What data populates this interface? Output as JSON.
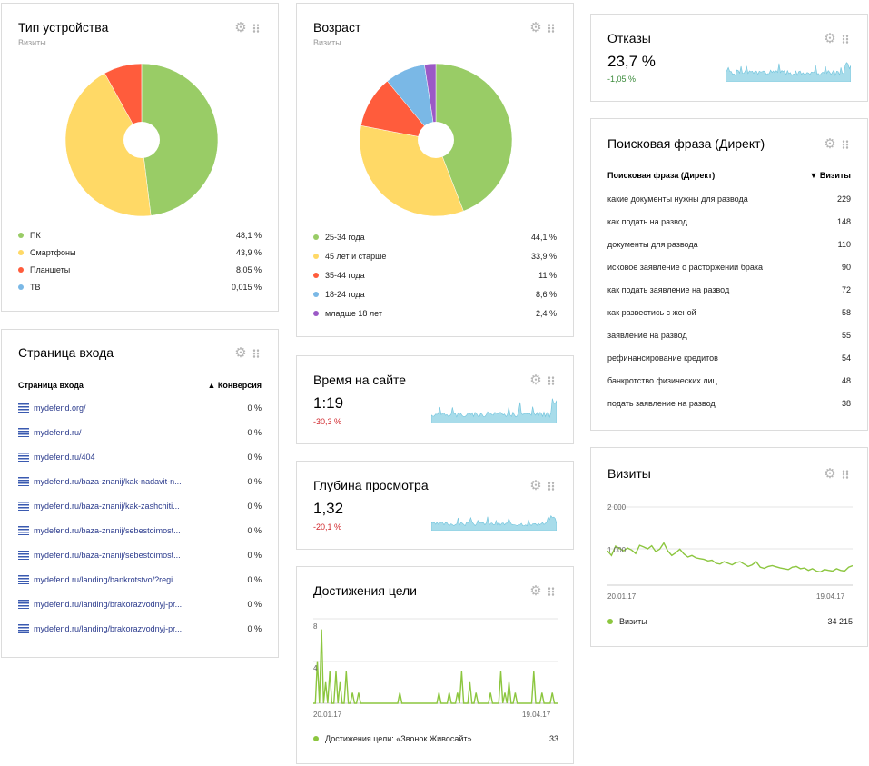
{
  "device": {
    "title": "Тип устройства",
    "subtitle": "Визиты",
    "slice_colors": [
      "#99cc66",
      "#ffd966",
      "#ff5c3c",
      "#7ab8e6"
    ],
    "items": [
      {
        "label": "ПК",
        "value": "48,1 %",
        "share": 48.1,
        "color": "#99cc66"
      },
      {
        "label": "Смартфоны",
        "value": "43,9 %",
        "share": 43.9,
        "color": "#ffd966"
      },
      {
        "label": "Планшеты",
        "value": "8,05 %",
        "share": 8.05,
        "color": "#ff5c3c"
      },
      {
        "label": "ТВ",
        "value": "0,015 %",
        "share": 0.015,
        "color": "#7ab8e6"
      }
    ]
  },
  "age": {
    "title": "Возраст",
    "subtitle": "Визиты",
    "items": [
      {
        "label": "25-34 года",
        "value": "44,1 %",
        "share": 44.1,
        "color": "#99cc66"
      },
      {
        "label": "45 лет и старше",
        "value": "33,9 %",
        "share": 33.9,
        "color": "#ffd966"
      },
      {
        "label": "35-44 года",
        "value": "11 %",
        "share": 11,
        "color": "#ff5c3c"
      },
      {
        "label": "18-24 года",
        "value": "8,6 %",
        "share": 8.6,
        "color": "#7ab8e6"
      },
      {
        "label": "младше 18 лет",
        "value": "2,4 %",
        "share": 2.4,
        "color": "#9b59c6"
      }
    ]
  },
  "bounce": {
    "title": "Отказы",
    "value": "23,7 %",
    "delta": "-1,05 %"
  },
  "time_on_site": {
    "title": "Время на сайте",
    "value": "1:19",
    "delta": "-30,3 %"
  },
  "depth": {
    "title": "Глубина просмотра",
    "value": "1,32",
    "delta": "-20,1 %"
  },
  "landing": {
    "title": "Страница входа",
    "col_page": "Страница входа",
    "col_conv": "▲ Конверсия",
    "rows": [
      {
        "page": "mydefend.org/",
        "conv": "0 %"
      },
      {
        "page": "mydefend.ru/",
        "conv": "0 %"
      },
      {
        "page": "mydefend.ru/404",
        "conv": "0 %"
      },
      {
        "page": "mydefend.ru/baza-znanij/kak-nadavit-n...",
        "conv": "0 %"
      },
      {
        "page": "mydefend.ru/baza-znanij/kak-zashchiti...",
        "conv": "0 %"
      },
      {
        "page": "mydefend.ru/baza-znanij/sebestoimost...",
        "conv": "0 %"
      },
      {
        "page": "mydefend.ru/baza-znanij/sebestoimost...",
        "conv": "0 %"
      },
      {
        "page": "mydefend.ru/landing/bankrotstvo/?regi...",
        "conv": "0 %"
      },
      {
        "page": "mydefend.ru/landing/brakorazvodnyj-pr...",
        "conv": "0 %"
      },
      {
        "page": "mydefend.ru/landing/brakorazvodnyj-pr...",
        "conv": "0 %"
      }
    ]
  },
  "goals": {
    "title": "Достижения цели",
    "y_ticks": [
      "8",
      "4"
    ],
    "x_start": "20.01.17",
    "x_end": "19.04.17",
    "legend": "Достижения цели: «Звонок Живосайт»",
    "total": "33",
    "color": "#8cc63f"
  },
  "phrase": {
    "title": "Поисковая фраза (Директ)",
    "col_phrase": "Поисковая фраза (Директ)",
    "col_visits": "▼ Визиты",
    "rows": [
      {
        "phrase": "какие документы нужны для развода",
        "visits": "229"
      },
      {
        "phrase": "как подать на развод",
        "visits": "148"
      },
      {
        "phrase": "документы для развода",
        "visits": "110"
      },
      {
        "phrase": "исковое заявление о расторжении брака",
        "visits": "90"
      },
      {
        "phrase": "как подать заявление на развод",
        "visits": "72"
      },
      {
        "phrase": "как развестись с женой",
        "visits": "58"
      },
      {
        "phrase": "заявление на развод",
        "visits": "55"
      },
      {
        "phrase": "рефинансирование кредитов",
        "visits": "54"
      },
      {
        "phrase": "банкротство физических лиц",
        "visits": "48"
      },
      {
        "phrase": "подать заявление на развод",
        "visits": "38"
      }
    ]
  },
  "visits": {
    "title": "Визиты",
    "y_ticks": [
      "2 000",
      "1 000"
    ],
    "x_start": "20.01.17",
    "x_end": "19.04.17",
    "legend": "Визиты",
    "total": "34 215",
    "color": "#8cc63f"
  }
}
